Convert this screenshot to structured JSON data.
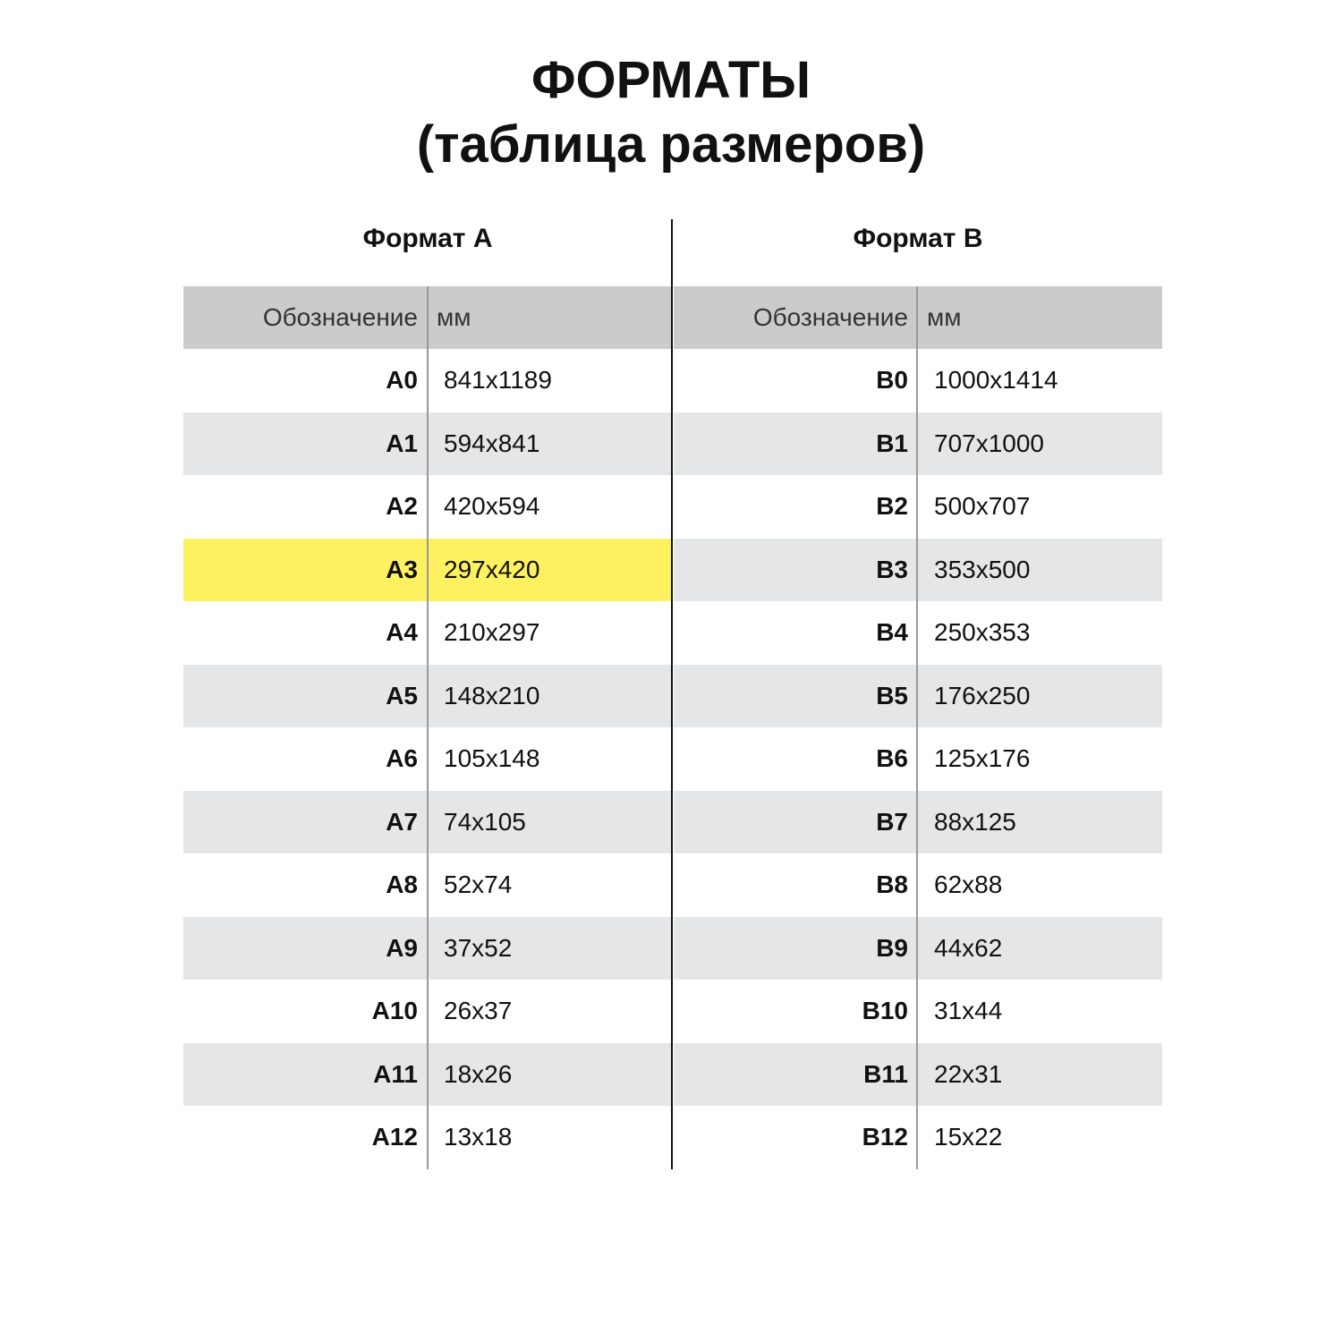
{
  "title_line1": "ФОРМАТЫ",
  "title_line2": "(таблица размеров)",
  "highlight_color": "#fef15f",
  "tables": [
    {
      "heading": "Формат А",
      "col_code": "Обозначение",
      "col_mm": "мм",
      "rows": [
        [
          "A0",
          "841x1189"
        ],
        [
          "A1",
          "594x841"
        ],
        [
          "A2",
          "420x594"
        ],
        [
          "A3",
          "297x420"
        ],
        [
          "A4",
          "210x297"
        ],
        [
          "A5",
          "148x210"
        ],
        [
          "A6",
          "105x148"
        ],
        [
          "A7",
          "74x105"
        ],
        [
          "A8",
          "52x74"
        ],
        [
          "A9",
          "37x52"
        ],
        [
          "A10",
          "26x37"
        ],
        [
          "A11",
          "18x26"
        ],
        [
          "A12",
          "13x18"
        ]
      ],
      "highlighted_row": "A3"
    },
    {
      "heading": "Формат В",
      "col_code": "Обозначение",
      "col_mm": "мм",
      "rows": [
        [
          "B0",
          "1000x1414"
        ],
        [
          "B1",
          "707x1000"
        ],
        [
          "B2",
          "500x707"
        ],
        [
          "B3",
          "353x500"
        ],
        [
          "B4",
          "250x353"
        ],
        [
          "B5",
          "176x250"
        ],
        [
          "B6",
          "125x176"
        ],
        [
          "B7",
          "88x125"
        ],
        [
          "B8",
          "62x88"
        ],
        [
          "B9",
          "44x62"
        ],
        [
          "B10",
          "31x44"
        ],
        [
          "B11",
          "22x31"
        ],
        [
          "B12",
          "15x22"
        ]
      ],
      "highlighted_row": null
    }
  ]
}
